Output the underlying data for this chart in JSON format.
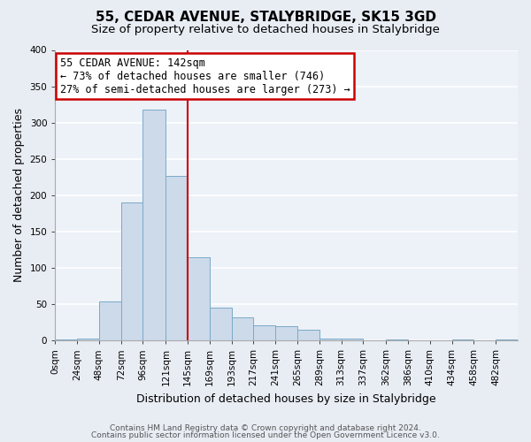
{
  "title": "55, CEDAR AVENUE, STALYBRIDGE, SK15 3GD",
  "subtitle": "Size of property relative to detached houses in Stalybridge",
  "xlabel": "Distribution of detached houses by size in Stalybridge",
  "ylabel": "Number of detached properties",
  "bar_color": "#ccdaea",
  "bar_edge_color": "#7aaac8",
  "background_color": "#e8edf4",
  "plot_bg_color": "#edf1f8",
  "grid_color": "#ffffff",
  "annotation_box_color": "#cc0000",
  "vline_color": "#cc0000",
  "categories": [
    "0sqm",
    "24sqm",
    "48sqm",
    "72sqm",
    "96sqm",
    "121sqm",
    "145sqm",
    "169sqm",
    "193sqm",
    "217sqm",
    "241sqm",
    "265sqm",
    "289sqm",
    "313sqm",
    "337sqm",
    "362sqm",
    "386sqm",
    "410sqm",
    "434sqm",
    "458sqm",
    "482sqm"
  ],
  "bin_edges": [
    0,
    24,
    48,
    72,
    96,
    121,
    145,
    169,
    193,
    217,
    241,
    265,
    289,
    313,
    337,
    362,
    386,
    410,
    434,
    458,
    482,
    506
  ],
  "values": [
    1,
    2,
    53,
    190,
    318,
    226,
    114,
    45,
    32,
    21,
    20,
    15,
    2,
    2,
    0,
    1,
    0,
    0,
    1,
    0,
    1
  ],
  "ylim": [
    0,
    400
  ],
  "yticks": [
    0,
    50,
    100,
    150,
    200,
    250,
    300,
    350,
    400
  ],
  "vline_x": 145,
  "annotation_title": "55 CEDAR AVENUE: 142sqm",
  "annotation_line1": "← 73% of detached houses are smaller (746)",
  "annotation_line2": "27% of semi-detached houses are larger (273) →",
  "footer1": "Contains HM Land Registry data © Crown copyright and database right 2024.",
  "footer2": "Contains public sector information licensed under the Open Government Licence v3.0.",
  "title_fontsize": 11,
  "subtitle_fontsize": 9.5,
  "axis_label_fontsize": 9,
  "tick_fontsize": 7.5,
  "annotation_fontsize": 8.5,
  "footer_fontsize": 6.5
}
